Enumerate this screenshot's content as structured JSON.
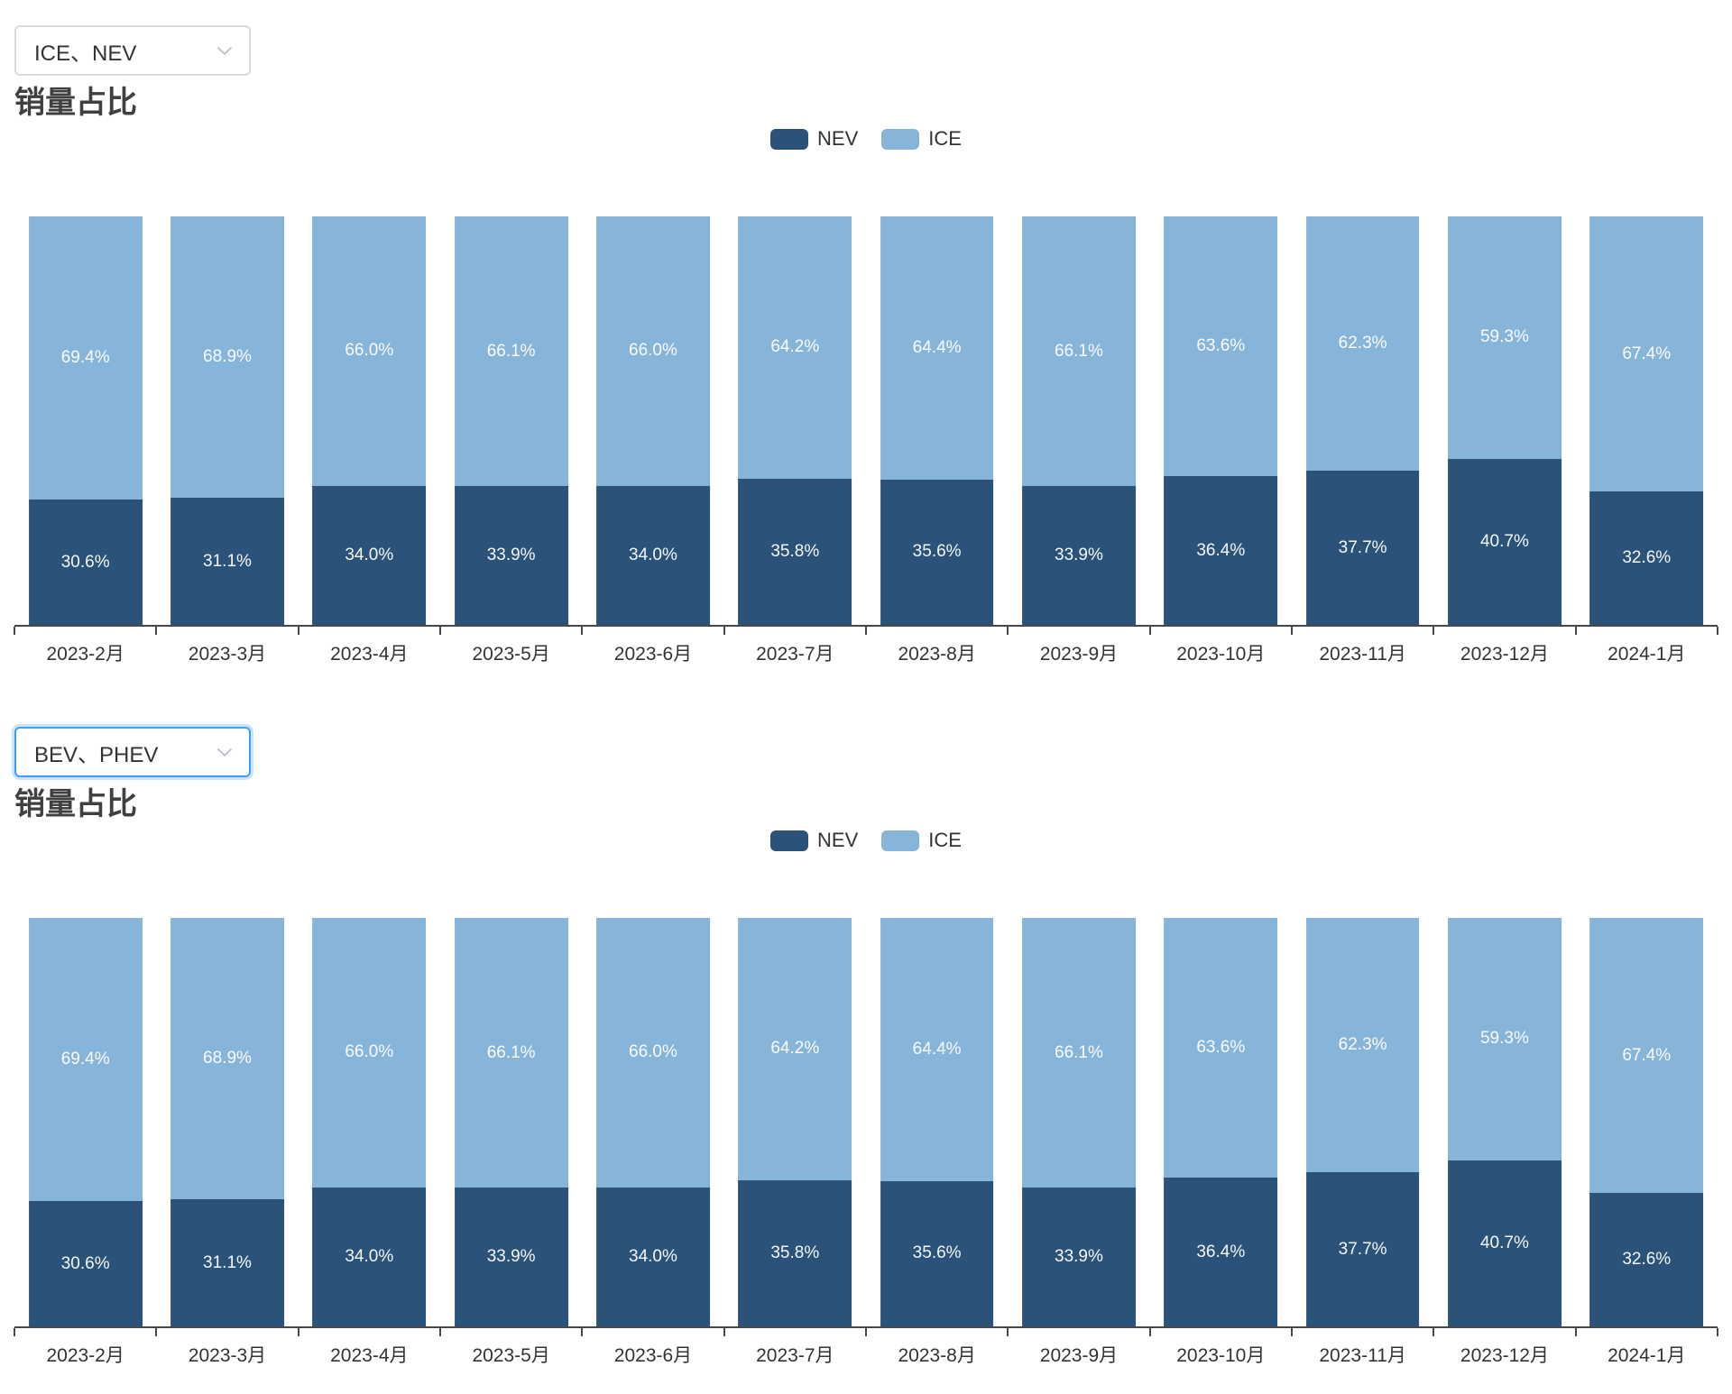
{
  "colors": {
    "nev": "#2b5379",
    "ice": "#87b4d9",
    "axis": "#45484d",
    "focus_border": "#409eff",
    "select_border": "#d9d9d9",
    "text": "#333333"
  },
  "sections": [
    {
      "dropdown": {
        "value": "ICE、NEV",
        "state": "default"
      },
      "title": "销量占比",
      "legend": [
        {
          "label": "NEV",
          "color": "#2b5379"
        },
        {
          "label": "ICE",
          "color": "#87b4d9"
        }
      ],
      "chart_data": {
        "type": "bar",
        "stacked": true,
        "unit": "%",
        "title": "销量占比",
        "legend_position": "top-center",
        "grid": false,
        "ylim": [
          0,
          100
        ],
        "categories": [
          "2023-2月",
          "2023-3月",
          "2023-4月",
          "2023-5月",
          "2023-6月",
          "2023-7月",
          "2023-8月",
          "2023-9月",
          "2023-10月",
          "2023-11月",
          "2023-12月",
          "2024-1月"
        ],
        "series": [
          {
            "name": "NEV",
            "color": "#2b5379",
            "values": [
              30.6,
              31.1,
              34.0,
              33.9,
              34.0,
              35.8,
              35.6,
              33.9,
              36.4,
              37.7,
              40.7,
              32.6
            ]
          },
          {
            "name": "ICE",
            "color": "#87b4d9",
            "values": [
              69.4,
              68.9,
              66.0,
              66.1,
              66.0,
              64.2,
              64.4,
              66.1,
              63.6,
              62.3,
              59.3,
              67.4
            ]
          }
        ]
      }
    },
    {
      "dropdown": {
        "value": "BEV、PHEV",
        "state": "focused"
      },
      "title": "销量占比",
      "legend": [
        {
          "label": "NEV",
          "color": "#2b5379"
        },
        {
          "label": "ICE",
          "color": "#87b4d9"
        }
      ],
      "chart_data": {
        "type": "bar",
        "stacked": true,
        "unit": "%",
        "title": "销量占比",
        "legend_position": "top-center",
        "grid": false,
        "ylim": [
          0,
          100
        ],
        "categories": [
          "2023-2月",
          "2023-3月",
          "2023-4月",
          "2023-5月",
          "2023-6月",
          "2023-7月",
          "2023-8月",
          "2023-9月",
          "2023-10月",
          "2023-11月",
          "2023-12月",
          "2024-1月"
        ],
        "series": [
          {
            "name": "NEV",
            "color": "#2b5379",
            "values": [
              30.6,
              31.1,
              34.0,
              33.9,
              34.0,
              35.8,
              35.6,
              33.9,
              36.4,
              37.7,
              40.7,
              32.6
            ]
          },
          {
            "name": "ICE",
            "color": "#87b4d9",
            "values": [
              69.4,
              68.9,
              66.0,
              66.1,
              66.0,
              64.2,
              64.4,
              66.1,
              63.6,
              62.3,
              59.3,
              67.4
            ]
          }
        ]
      }
    }
  ]
}
